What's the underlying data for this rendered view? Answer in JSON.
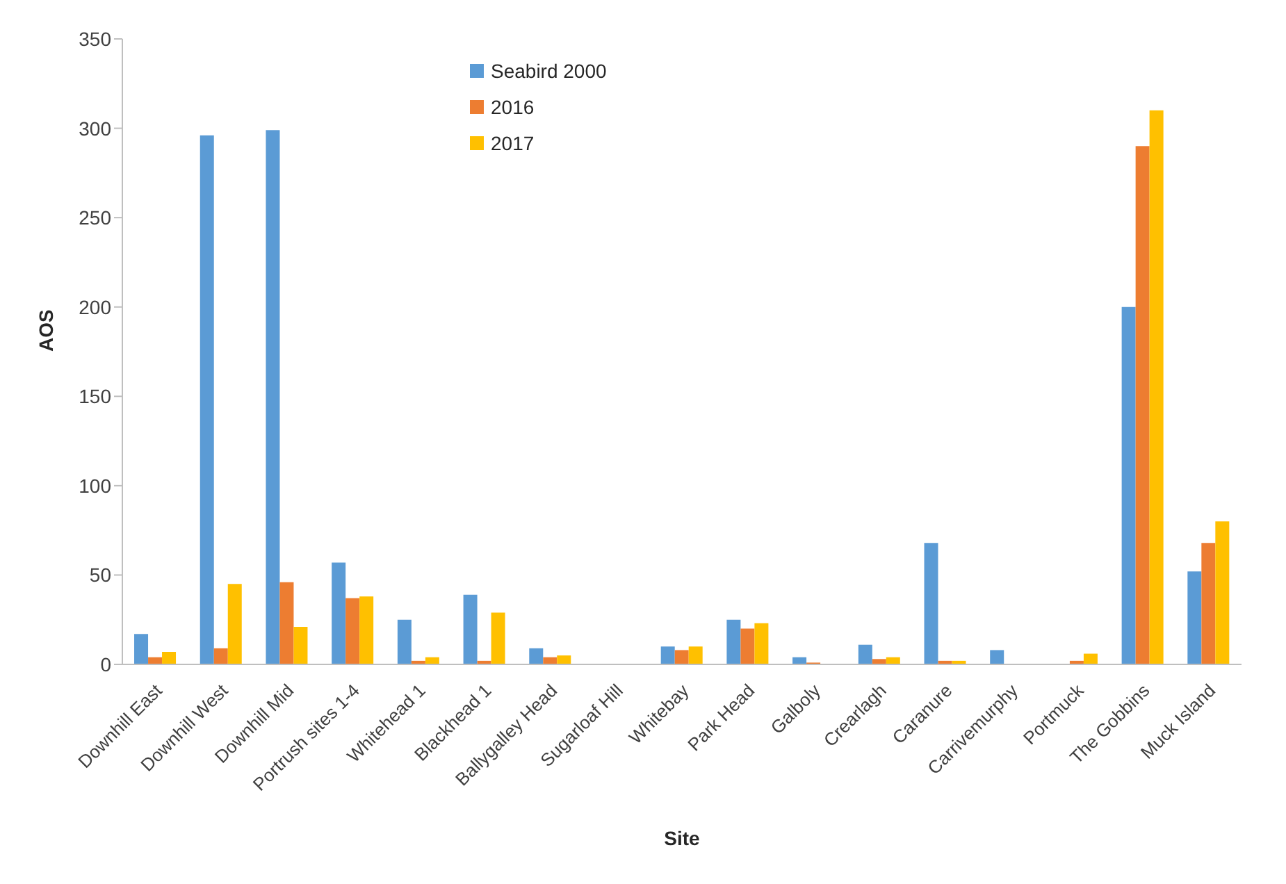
{
  "chart_data": {
    "type": "bar",
    "xlabel": "Site",
    "ylabel": "AOS",
    "categories": [
      "Downhill East",
      "Downhill West",
      "Downhill Mid",
      "Portrush sites 1-4",
      "Whitehead 1",
      "Blackhead 1",
      "Ballygalley Head",
      "Sugarloaf Hill",
      "Whitebay",
      "Park Head",
      "Galboly",
      "Crearlagh",
      "Caranure",
      "Carrivemurphy",
      "Portmuck",
      "The Gobbins",
      "Muck Island"
    ],
    "series": [
      {
        "name": "Seabird 2000",
        "color": "#5b9bd5",
        "values": [
          17,
          296,
          299,
          57,
          25,
          39,
          9,
          0,
          10,
          25,
          4,
          11,
          68,
          8,
          0,
          200,
          52
        ]
      },
      {
        "name": "2016",
        "color": "#ed7d31",
        "values": [
          4,
          9,
          46,
          37,
          2,
          2,
          4,
          0,
          8,
          20,
          1,
          3,
          2,
          0,
          2,
          290,
          68
        ]
      },
      {
        "name": "2017",
        "color": "#ffc000",
        "values": [
          7,
          45,
          21,
          38,
          4,
          29,
          5,
          0,
          10,
          23,
          0,
          4,
          2,
          0,
          6,
          310,
          80
        ]
      }
    ],
    "ylim": [
      0,
      350
    ],
    "yticks": [
      0,
      50,
      100,
      150,
      200,
      250,
      300,
      350
    ],
    "grid": false,
    "legend": "top left"
  }
}
